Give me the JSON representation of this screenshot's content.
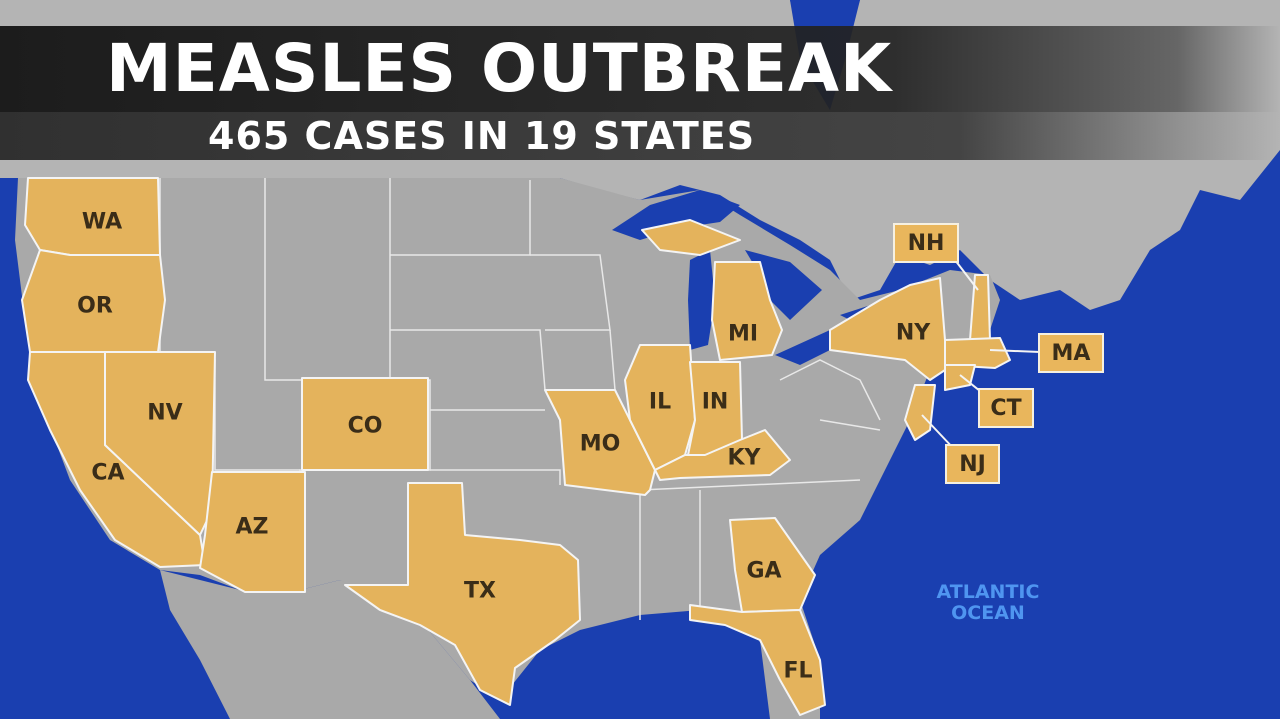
{
  "banner": {
    "title": "MEASLES OUTBREAK",
    "subtitle": "465 CASES IN 19 STATES"
  },
  "ocean_label": {
    "line1": "ATLANTIC",
    "line2": "OCEAN"
  },
  "colors": {
    "ocean": "#1a3fb0",
    "land": "#a9a9a9",
    "affected_state": "#e4b35c",
    "state_border": "#f2f2f2",
    "ocean_label": "#4f95f0"
  },
  "affected_states": {
    "wa": "WA",
    "or": "OR",
    "ca": "CA",
    "nv": "NV",
    "az": "AZ",
    "co": "CO",
    "tx": "TX",
    "mo": "MO",
    "il": "IL",
    "in": "IN",
    "ky": "KY",
    "mi": "MI",
    "ga": "GA",
    "fl": "FL",
    "ny": "NY"
  },
  "callouts": {
    "nh": "NH",
    "ma": "MA",
    "ct": "CT",
    "nj": "NJ"
  }
}
